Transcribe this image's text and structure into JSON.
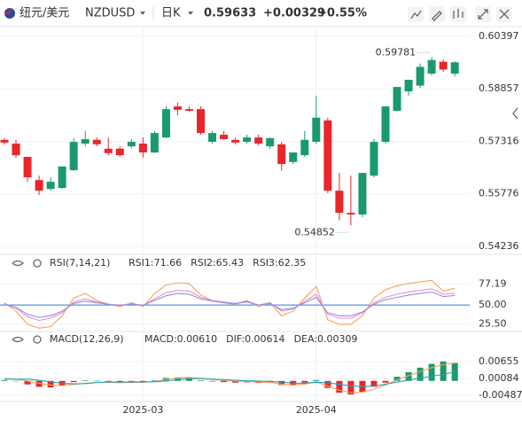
{
  "header": {
    "name_cn": "纽元/美元",
    "symbol": "NZDUSD",
    "period": "日K",
    "price": 0.59633,
    "change": {
      "value": 0.00329,
      "label": "+0.00329"
    },
    "change_pct": {
      "value": 0.55,
      "label": "+0.55%"
    },
    "color": "#e8262b"
  },
  "chart_data": [
    {
      "type": "candlestick",
      "up_color": "#1a9a6c",
      "down_color": "#e8262b",
      "categories": [
        null,
        null,
        null,
        null,
        null,
        null,
        null,
        null,
        null,
        null,
        null,
        null,
        "2025-03",
        null,
        null,
        null,
        null,
        null,
        null,
        null,
        null,
        null,
        null,
        null,
        null,
        null,
        null,
        "2025-04",
        null,
        null,
        null,
        null,
        null,
        null,
        null,
        null,
        null,
        null,
        null,
        null
      ],
      "open": [
        0.5736,
        0.5725,
        0.5686,
        0.5618,
        0.5592,
        0.5595,
        0.5647,
        0.5725,
        0.5736,
        0.571,
        0.571,
        0.5717,
        0.5725,
        0.5699,
        0.5743,
        0.5834,
        0.5826,
        0.5826,
        0.573,
        0.5751,
        0.5736,
        0.573,
        0.5743,
        0.5717,
        0.5723,
        0.5671,
        0.5691,
        0.573,
        0.5793,
        0.5587,
        0.5522,
        0.5517,
        0.5631,
        0.573,
        0.5821,
        0.5878,
        0.5895,
        0.593,
        0.5965,
        0.593
      ],
      "high": [
        0.5741,
        0.5736,
        0.5686,
        0.5631,
        0.5626,
        0.5658,
        0.5741,
        0.5762,
        0.5743,
        0.5743,
        0.5717,
        0.5738,
        0.5743,
        0.5762,
        0.5834,
        0.5845,
        0.5834,
        0.5834,
        0.5762,
        0.5762,
        0.5743,
        0.5751,
        0.5751,
        0.5743,
        0.573,
        0.5699,
        0.5762,
        0.5865,
        0.5801,
        0.5639,
        0.5631,
        0.5639,
        0.5738,
        0.5834,
        0.5891,
        0.5912,
        0.596,
        0.59781,
        0.5972,
        0.5966
      ],
      "low": [
        0.5723,
        0.5684,
        0.5613,
        0.5574,
        0.5587,
        0.5592,
        0.5645,
        0.5717,
        0.5717,
        0.5691,
        0.5686,
        0.571,
        0.5684,
        0.5697,
        0.5741,
        0.5808,
        0.5819,
        0.5751,
        0.5725,
        0.5736,
        0.5723,
        0.5725,
        0.572,
        0.571,
        0.5645,
        0.5665,
        0.5686,
        0.5725,
        0.558,
        0.55,
        0.54852,
        0.5509,
        0.5626,
        0.5725,
        0.5819,
        0.5865,
        0.5888,
        0.5925,
        0.5935,
        0.5922
      ],
      "close": [
        0.5728,
        0.5691,
        0.5626,
        0.5587,
        0.5613,
        0.5658,
        0.573,
        0.5738,
        0.5723,
        0.5697,
        0.5691,
        0.573,
        0.5699,
        0.5756,
        0.5826,
        0.5824,
        0.5821,
        0.5756,
        0.5756,
        0.5738,
        0.5728,
        0.5743,
        0.5725,
        0.5741,
        0.5665,
        0.5699,
        0.5736,
        0.5801,
        0.5587,
        0.5522,
        0.5517,
        0.5639,
        0.573,
        0.5834,
        0.5891,
        0.5912,
        0.595,
        0.597,
        0.5942,
        0.59633
      ],
      "ylim": [
        0.5408,
        0.6068
      ],
      "yticks": [
        0.60397,
        0.58857,
        0.57316,
        0.55776,
        0.54236
      ],
      "grid": true
    },
    {
      "type": "line",
      "title": "RSI(7,14,21)",
      "series": [
        {
          "label": "RSI1:71.66",
          "color": "#f5a25d",
          "values": [
            53,
            42,
            25,
            20,
            22,
            36,
            59,
            65,
            56,
            51,
            48,
            53,
            48,
            65,
            76,
            79,
            78,
            63,
            56,
            53,
            51,
            56,
            48,
            53,
            36,
            42,
            59,
            74,
            31,
            25,
            25,
            36,
            59,
            70,
            75,
            78,
            80,
            82,
            68,
            71.66
          ]
        },
        {
          "label": "RSI2:65.43",
          "color": "#e78fc4",
          "values": [
            52,
            46,
            35,
            30,
            33,
            40,
            54,
            58,
            54,
            51,
            49,
            52,
            49,
            58,
            66,
            69,
            68,
            60,
            56,
            54,
            52,
            55,
            50,
            53,
            42,
            45,
            55,
            64,
            38,
            33,
            33,
            40,
            53,
            60,
            64,
            67,
            69,
            71,
            64,
            65.43
          ]
        },
        {
          "label": "RSI3:62.35",
          "color": "#8f8fe6",
          "values": [
            51,
            47,
            38,
            34,
            36,
            42,
            52,
            55,
            53,
            51,
            50,
            51,
            50,
            56,
            62,
            65,
            64,
            58,
            55,
            53,
            52,
            54,
            50,
            52,
            44,
            46,
            53,
            60,
            40,
            36,
            36,
            41,
            51,
            57,
            60,
            63,
            65,
            67,
            61,
            62.35
          ]
        }
      ],
      "ylim": [
        18,
        110
      ],
      "yticks": [
        77.19,
        {
          "value": 50,
          "label": "50.00"
        },
        {
          "value": 25.5,
          "label": "25.50"
        }
      ],
      "ref_line": {
        "value": 50,
        "color": "#2b7fd8"
      }
    },
    {
      "type": "macd",
      "title": "MACD(12,26,9)",
      "histogram": {
        "label": "MACD:0.00610",
        "color": "#9b7fd6",
        "up_color": "#1a9a6c",
        "down_color": "#e8262b",
        "values": [
          0.0003,
          0,
          -0.0012,
          -0.002,
          -0.0022,
          -0.0016,
          -0.0004,
          0.0002,
          0.0001,
          -0.0002,
          -0.0004,
          -0.0002,
          -0.0003,
          0.0002,
          0.001,
          0.0012,
          0.001,
          0.0002,
          -0.0002,
          -0.0004,
          -0.0006,
          -0.0005,
          -0.0007,
          -0.0006,
          -0.0014,
          -0.0013,
          -0.0006,
          0.0003,
          -0.0024,
          -0.004,
          -0.0046,
          -0.0038,
          -0.002,
          -0.0006,
          0.0014,
          0.003,
          0.0045,
          0.0058,
          0.0066,
          0.0061
        ]
      },
      "series": [
        {
          "label": "DIF:0.00614",
          "color": "#f5a25d",
          "values": [
            0.0008,
            0.0006,
            0,
            -0.0008,
            -0.0014,
            -0.0016,
            -0.0012,
            -0.0008,
            -0.0005,
            -0.0005,
            -0.0006,
            -0.0005,
            -0.0005,
            -0.0002,
            0.0005,
            0.001,
            0.0012,
            0.0009,
            0.0005,
            0.0002,
            -0.0001,
            -0.0002,
            -0.0004,
            -0.0005,
            -0.0011,
            -0.0014,
            -0.0011,
            -0.0003,
            -0.0018,
            -0.0032,
            -0.004,
            -0.0038,
            -0.0028,
            -0.0014,
            0.0003,
            0.0018,
            0.0032,
            0.0045,
            0.0055,
            0.00614
          ]
        },
        {
          "label": "DEA:0.00309",
          "color": "#26a2b5",
          "values": [
            0.00065,
            0.0006,
            0.0006,
            0.0002,
            -0.0003,
            -0.0008,
            -0.001,
            -0.0009,
            -0.00055,
            -0.0004,
            -0.0004,
            -0.0004,
            -0.00035,
            -0.0003,
            0,
            0.0004,
            0.0007,
            0.0008,
            0.0006,
            0.0004,
            0.0002,
            5e-05,
            -5e-05,
            -0.0002,
            -0.0004,
            -0.00075,
            -0.0008,
            -0.00045,
            -0.0006,
            -0.0012,
            -0.0017,
            -0.0019,
            -0.0018,
            -0.0011,
            -0.0004,
            0.0003,
            0.00095,
            0.0016,
            0.0022,
            0.00309
          ]
        }
      ],
      "ylim": [
        -0.0067,
        0.0156
      ],
      "yticks": [
        0.00655,
        0.00084,
        -0.00487
      ]
    }
  ]
}
